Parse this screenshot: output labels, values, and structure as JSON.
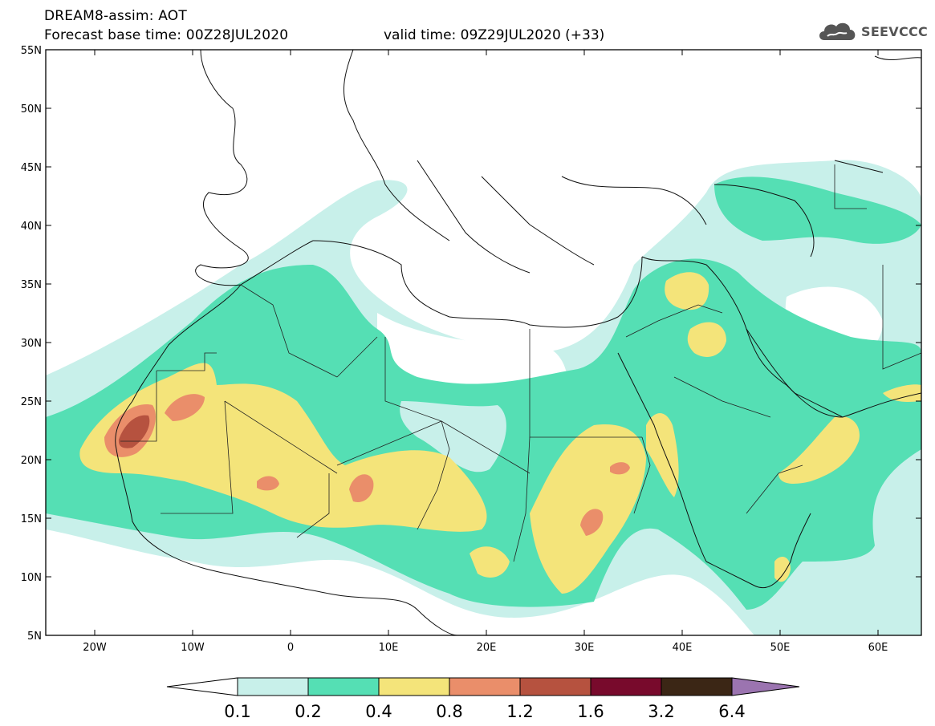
{
  "header": {
    "title": "DREAM8-assim: AOT",
    "base_time": "Forecast base time: 00Z28JUL2020",
    "valid_time": "valid time: 09Z29JUL2020 (+33)",
    "logo_text": "SEEVCCC"
  },
  "map": {
    "lat_ticks": [
      "55N",
      "50N",
      "45N",
      "40N",
      "35N",
      "30N",
      "25N",
      "20N",
      "15N",
      "10N",
      "5N"
    ],
    "lon_ticks": [
      "20W",
      "10W",
      "0",
      "10E",
      "20E",
      "30E",
      "40E",
      "50E",
      "60E"
    ],
    "colors": {
      "c01": "#c8f0ea",
      "c02": "#55dfb4",
      "c04": "#f4e47a",
      "c08": "#ea8e6a",
      "c12": "#b6523f",
      "c16": "#780a2c",
      "c32": "#3b2615",
      "c64": "#9b74b0"
    }
  },
  "colorbar": {
    "labels": [
      "0.1",
      "0.2",
      "0.4",
      "0.8",
      "1.2",
      "1.6",
      "3.2",
      "6.4"
    ],
    "colors": [
      "#ffffff",
      "#c8f0ea",
      "#55dfb4",
      "#f4e47a",
      "#ea8e6a",
      "#b6523f",
      "#780a2c",
      "#3b2615",
      "#9b74b0"
    ]
  }
}
